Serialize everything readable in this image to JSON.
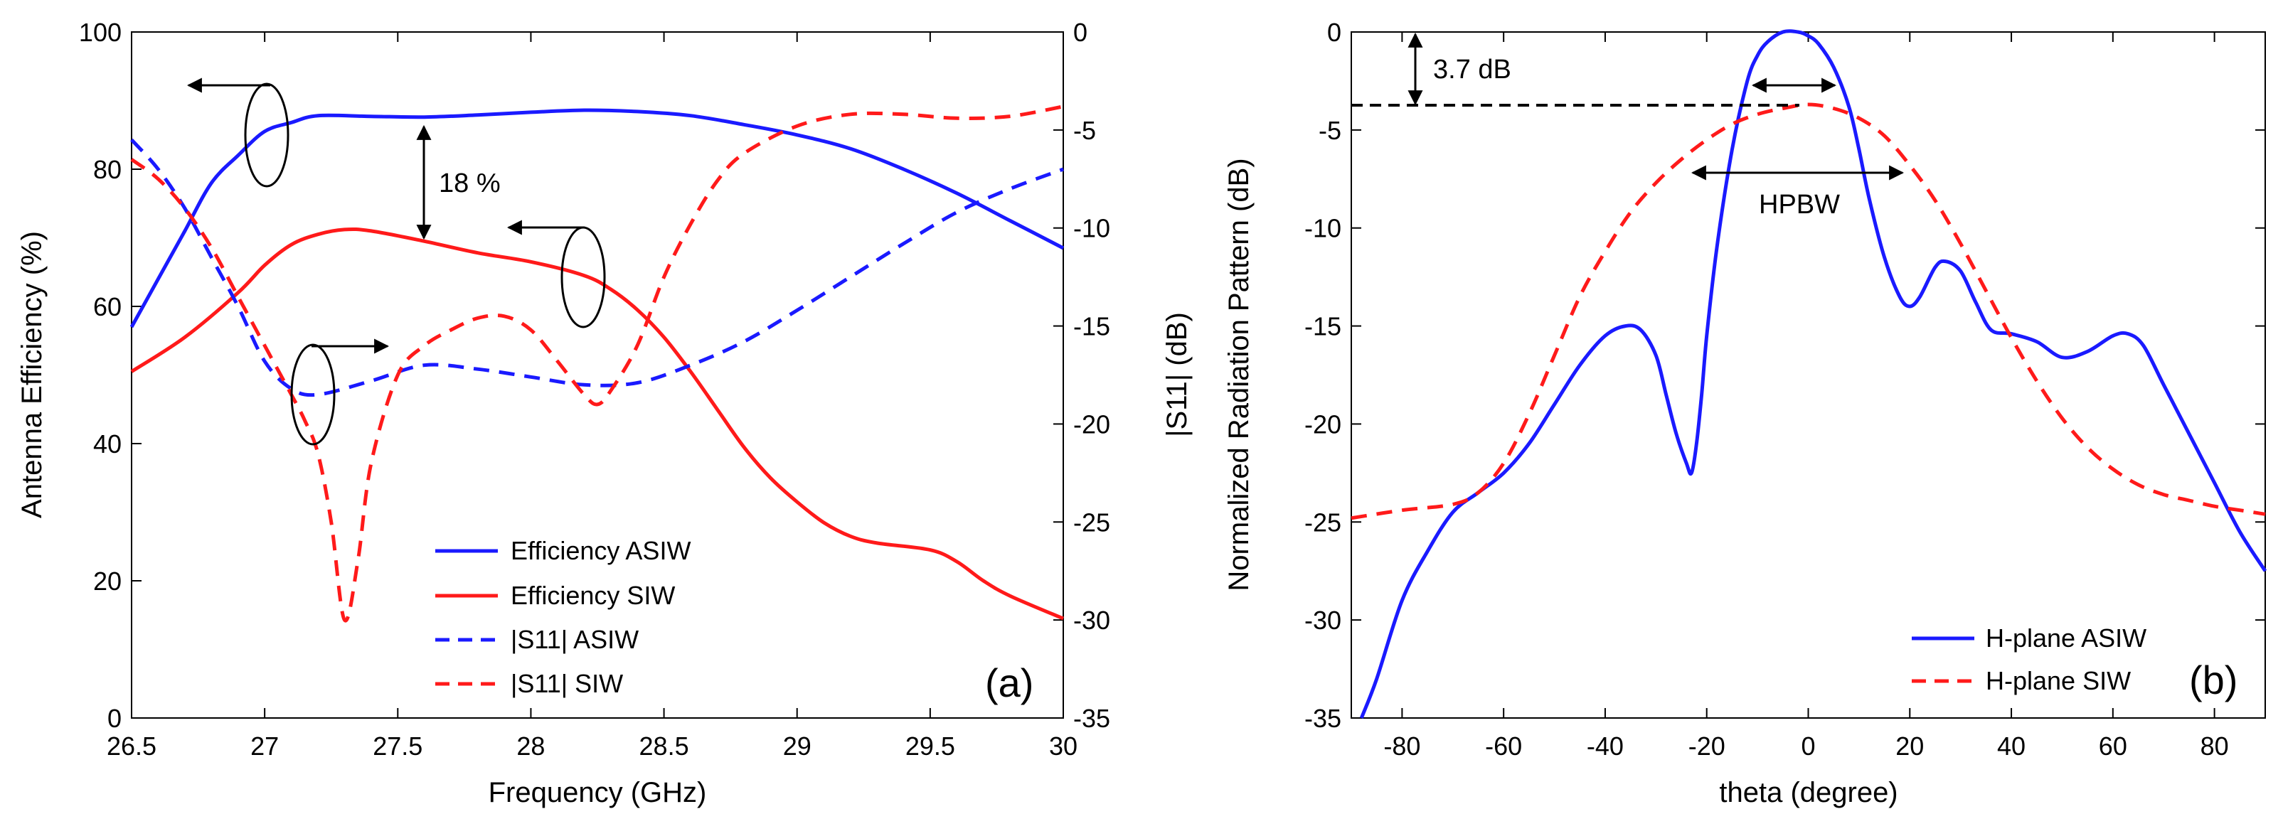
{
  "chart_data": [
    {
      "id": "a",
      "type": "line",
      "panel_label": "(a)",
      "xlabel": "Frequency (GHz)",
      "ylabel_left": "Antenna Efficiency (%)",
      "ylabel_right": "|S11| (dB)",
      "xlim": [
        26.5,
        30
      ],
      "ylim_left": [
        0,
        100
      ],
      "ylim_right": [
        -35,
        0
      ],
      "x_ticks": [
        "26.5",
        "27",
        "27.5",
        "28",
        "28.5",
        "29",
        "29.5",
        "30"
      ],
      "y_left_ticks": [
        "0",
        "20",
        "40",
        "60",
        "80",
        "100"
      ],
      "y_right_ticks": [
        "-35",
        "-30",
        "-25",
        "-20",
        "-15",
        "-10",
        "-5",
        "0"
      ],
      "series": [
        {
          "name": "Efficiency ASIW",
          "axis": "left",
          "color": "#1a1aff",
          "dash": false,
          "x": [
            26.5,
            26.6,
            26.7,
            26.8,
            26.9,
            27.0,
            27.1,
            27.2,
            27.4,
            27.6,
            27.8,
            28.0,
            28.2,
            28.4,
            28.6,
            28.8,
            29.0,
            29.2,
            29.4,
            29.6,
            29.8,
            30.0
          ],
          "values": [
            57,
            64,
            71,
            78,
            82,
            85.5,
            86.8,
            87.8,
            87.7,
            87.6,
            87.9,
            88.3,
            88.6,
            88.4,
            87.8,
            86.5,
            85,
            83,
            80,
            76.5,
            72.5,
            68.5
          ]
        },
        {
          "name": "Efficiency SIW",
          "axis": "left",
          "color": "#ff1a1a",
          "dash": false,
          "x": [
            26.5,
            26.7,
            26.9,
            27.0,
            27.1,
            27.2,
            27.3,
            27.4,
            27.6,
            27.8,
            28.0,
            28.2,
            28.3,
            28.4,
            28.5,
            28.6,
            28.7,
            28.8,
            28.9,
            29.0,
            29.1,
            29.2,
            29.3,
            29.5,
            29.6,
            29.7,
            29.8,
            30.0
          ],
          "values": [
            50.5,
            55.5,
            62,
            66,
            69,
            70.5,
            71.2,
            71,
            69.5,
            67.8,
            66.5,
            64.5,
            62.5,
            59.5,
            55.5,
            50.5,
            45,
            39.5,
            35,
            31.5,
            28.5,
            26.5,
            25.5,
            24.5,
            22.8,
            20,
            17.8,
            14.5
          ]
        },
        {
          "name": "|S11| ASIW",
          "axis": "right",
          "color": "#1a1aff",
          "dash": true,
          "x": [
            26.5,
            26.6,
            26.7,
            26.8,
            26.9,
            27.0,
            27.1,
            27.2,
            27.4,
            27.6,
            27.8,
            28.0,
            28.2,
            28.4,
            28.6,
            28.8,
            29.0,
            29.2,
            29.4,
            29.6,
            29.8,
            30.0
          ],
          "values": [
            -5.5,
            -7,
            -9,
            -11.5,
            -14,
            -16.8,
            -18.2,
            -18.5,
            -17.8,
            -17,
            -17.2,
            -17.6,
            -18,
            -17.9,
            -17,
            -15.8,
            -14.2,
            -12.5,
            -10.8,
            -9.2,
            -8,
            -7
          ]
        },
        {
          "name": "|S11| SIW",
          "axis": "right",
          "color": "#ff1a1a",
          "dash": true,
          "x": [
            26.5,
            26.6,
            26.7,
            26.8,
            26.9,
            27.0,
            27.1,
            27.15,
            27.2,
            27.25,
            27.3,
            27.35,
            27.4,
            27.5,
            27.6,
            27.7,
            27.8,
            27.9,
            28.0,
            28.1,
            28.2,
            28.25,
            28.3,
            28.4,
            28.5,
            28.6,
            28.7,
            28.8,
            29.0,
            29.2,
            29.4,
            29.6,
            29.8,
            30.0
          ],
          "values": [
            -6.5,
            -7.5,
            -9,
            -11,
            -13.5,
            -16,
            -18.5,
            -19.8,
            -21.5,
            -25,
            -30,
            -27,
            -22,
            -17.5,
            -16,
            -15.2,
            -14.6,
            -14.5,
            -15.2,
            -16.8,
            -18.5,
            -19,
            -18.3,
            -16,
            -12.5,
            -9.8,
            -7.6,
            -6.2,
            -4.8,
            -4.2,
            -4.2,
            -4.4,
            -4.3,
            -3.8
          ]
        }
      ],
      "annotations": [
        "18 %"
      ]
    },
    {
      "id": "b",
      "type": "line",
      "panel_label": "(b)",
      "xlabel": "theta (degree)",
      "ylabel": "Normalized Radiation Pattern (dB)",
      "xlim": [
        -90,
        90
      ],
      "ylim": [
        -35,
        0
      ],
      "x_ticks": [
        "-80",
        "-60",
        "-40",
        "-20",
        "0",
        "20",
        "40",
        "60",
        "80"
      ],
      "y_ticks": [
        "-35",
        "-30",
        "-25",
        "-20",
        "-15",
        "-10",
        "-5",
        "0"
      ],
      "series": [
        {
          "name": "H-plane ASIW",
          "color": "#1a1aff",
          "dash": false,
          "x": [
            -88,
            -85,
            -80,
            -75,
            -70,
            -65,
            -60,
            -55,
            -50,
            -45,
            -40,
            -36,
            -33,
            -30,
            -28,
            -26,
            -24,
            -23,
            -22,
            -21,
            -20,
            -18,
            -15,
            -12,
            -10,
            -8,
            -5,
            -2,
            0,
            2,
            5,
            8,
            10,
            12,
            15,
            18,
            20,
            22,
            25,
            27,
            30,
            33,
            36,
            40,
            45,
            50,
            55,
            60,
            63,
            66,
            70,
            75,
            80,
            85,
            90
          ],
          "values": [
            -35,
            -33,
            -29,
            -26.5,
            -24.5,
            -23.5,
            -22.5,
            -21,
            -19,
            -17,
            -15.5,
            -15,
            -15.2,
            -16.5,
            -18.5,
            -20.5,
            -22,
            -22.5,
            -21,
            -18.5,
            -15.5,
            -11,
            -6,
            -2.5,
            -1.2,
            -0.5,
            0,
            0,
            -0.2,
            -0.6,
            -1.8,
            -3.8,
            -6,
            -8.5,
            -11.5,
            -13.5,
            -14,
            -13.5,
            -12,
            -11.7,
            -12.2,
            -13.8,
            -15.2,
            -15.4,
            -15.8,
            -16.6,
            -16.3,
            -15.5,
            -15.4,
            -16,
            -18,
            -20.5,
            -23,
            -25.5,
            -27.5
          ]
        },
        {
          "name": "H-plane SIW",
          "color": "#ff1a1a",
          "dash": true,
          "x": [
            -90,
            -80,
            -70,
            -65,
            -60,
            -55,
            -50,
            -45,
            -40,
            -35,
            -30,
            -25,
            -20,
            -15,
            -10,
            -5,
            0,
            5,
            10,
            15,
            20,
            25,
            30,
            35,
            40,
            45,
            50,
            55,
            60,
            65,
            70,
            75,
            80,
            85,
            90
          ],
          "values": [
            -24.8,
            -24.4,
            -24.1,
            -23.5,
            -22,
            -19.5,
            -16.5,
            -13.5,
            -11.2,
            -9.2,
            -7.7,
            -6.5,
            -5.5,
            -4.7,
            -4.2,
            -3.9,
            -3.7,
            -3.9,
            -4.4,
            -5.3,
            -6.8,
            -8.6,
            -10.8,
            -13.2,
            -15.6,
            -17.8,
            -19.7,
            -21.2,
            -22.3,
            -23.1,
            -23.6,
            -23.9,
            -24.2,
            -24.4,
            -24.6
          ]
        }
      ],
      "annotations": [
        "3.7 dB",
        "HPBW"
      ]
    }
  ]
}
